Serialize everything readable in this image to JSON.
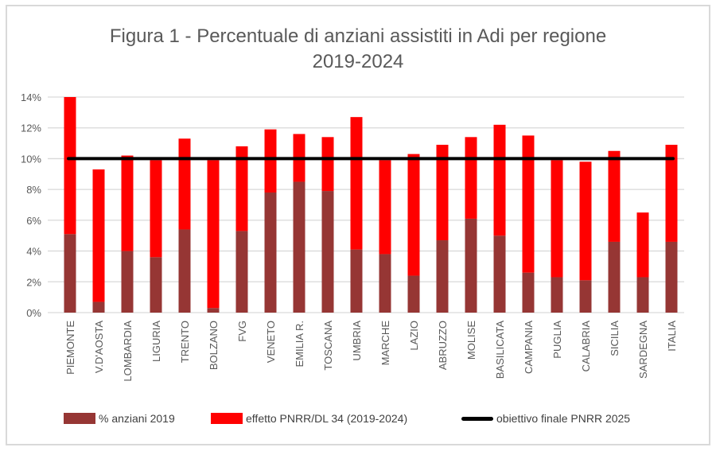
{
  "chart_data": {
    "type": "bar",
    "stacked": true,
    "title_line1": "Figura 1 - Percentuale di anziani assistiti in Adi per regione",
    "title_line2": "2019-2024",
    "categories": [
      "PIEMONTE",
      "V.D'AOSTA",
      "LOMBARDIA",
      "LIGURIA",
      "TRENTO",
      "BOLZANO",
      "FVG",
      "VENETO",
      "EMILIA R.",
      "TOSCANA",
      "UMBRIA",
      "MARCHE",
      "LAZIO",
      "ABRUZZO",
      "MOLISE",
      "BASILICATA",
      "CAMPANIA",
      "PUGLIA",
      "CALABRIA",
      "SICILIA",
      "SARDEGNA",
      "ITALIA"
    ],
    "series": [
      {
        "name": "% anziani 2019",
        "color": "#963634",
        "values": [
          5.1,
          0.7,
          4.0,
          3.6,
          5.4,
          0.3,
          5.3,
          7.8,
          8.5,
          7.9,
          4.1,
          3.8,
          2.4,
          4.7,
          6.1,
          5.0,
          2.6,
          2.3,
          2.1,
          4.6,
          2.3,
          4.6
        ]
      },
      {
        "name": "effetto PNRR/DL 34 (2019-2024)",
        "color": "#ff0000",
        "values": [
          8.9,
          8.6,
          6.2,
          6.3,
          5.9,
          9.6,
          5.5,
          4.1,
          3.1,
          3.5,
          8.6,
          6.1,
          7.9,
          6.2,
          5.3,
          7.2,
          8.9,
          7.6,
          7.7,
          5.9,
          4.2,
          6.3
        ]
      }
    ],
    "line": {
      "name": "obiettivo finale PNRR 2025",
      "value": 10,
      "color": "#000000"
    },
    "ylim": [
      0,
      14
    ],
    "yticks": [
      "0%",
      "2%",
      "4%",
      "6%",
      "8%",
      "10%",
      "12%",
      "14%"
    ],
    "grid": true,
    "legend_position": "bottom"
  }
}
